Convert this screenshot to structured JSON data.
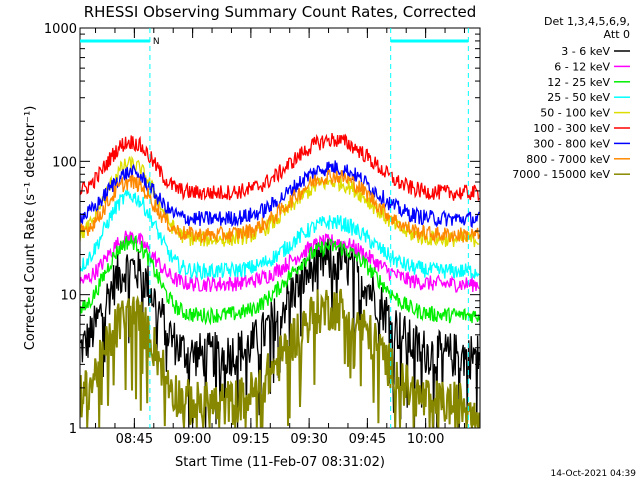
{
  "chart_data": {
    "type": "line",
    "title": "RHESSI Observing Summary Count Rates, Corrected",
    "xlabel": "Start Time (11-Feb-07 08:31:02)",
    "ylabel": "Corrected Count Rate (s⁻¹ detector⁻¹)",
    "yscale": "log",
    "ylim": [
      1,
      1000
    ],
    "xlim_minutes_after_0831": [
      0,
      103
    ],
    "x_ticks": [
      {
        "label": "08:45",
        "t": 14
      },
      {
        "label": "09:00",
        "t": 29
      },
      {
        "label": "09:15",
        "t": 44
      },
      {
        "label": "09:30",
        "t": 59
      },
      {
        "label": "09:45",
        "t": 74
      },
      {
        "label": "10:00",
        "t": 89
      }
    ],
    "y_ticks": [
      {
        "label": "1",
        "v": 1
      },
      {
        "label": "10",
        "v": 10
      },
      {
        "label": "100",
        "v": 100
      },
      {
        "label": "1000",
        "v": 1000
      }
    ],
    "legend_header": [
      "Det 1,3,4,5,6,9,",
      "Att 0"
    ],
    "legend_position": "right",
    "flags": [
      {
        "label": "N",
        "start": 0,
        "end": 18
      },
      {
        "label": "",
        "start": 80,
        "end": 100
      }
    ],
    "vertical_markers": [
      18,
      80,
      100
    ],
    "series": [
      {
        "name": "3 - 6 keV",
        "color": "#000000",
        "base": 3.5,
        "peak1": 16,
        "peak2": 18
      },
      {
        "name": "6 - 12 keV",
        "color": "#ff00ff",
        "base": 12,
        "peak1": 27,
        "peak2": 25
      },
      {
        "name": "12 - 25 keV",
        "color": "#00ee00",
        "base": 7,
        "peak1": 25,
        "peak2": 23
      },
      {
        "name": "25 - 50 keV",
        "color": "#00ffff",
        "base": 15,
        "peak1": 55,
        "peak2": 35
      },
      {
        "name": "50 - 100 keV",
        "color": "#dddd00",
        "base": 26,
        "peak1": 95,
        "peak2": 70
      },
      {
        "name": "100 - 300 keV",
        "color": "#ff0000",
        "base": 58,
        "peak1": 140,
        "peak2": 145
      },
      {
        "name": "300 - 800 keV",
        "color": "#0000ff",
        "base": 37,
        "peak1": 82,
        "peak2": 90
      },
      {
        "name": "800 - 7000 keV",
        "color": "#ff8800",
        "base": 28,
        "peak1": 70,
        "peak2": 78
      },
      {
        "name": "7000 - 15000 keV",
        "color": "#888800",
        "base": 1.5,
        "peak1": 7,
        "peak2": 8
      }
    ]
  },
  "footer": {
    "timestamp": "14-Oct-2021 04:39"
  }
}
